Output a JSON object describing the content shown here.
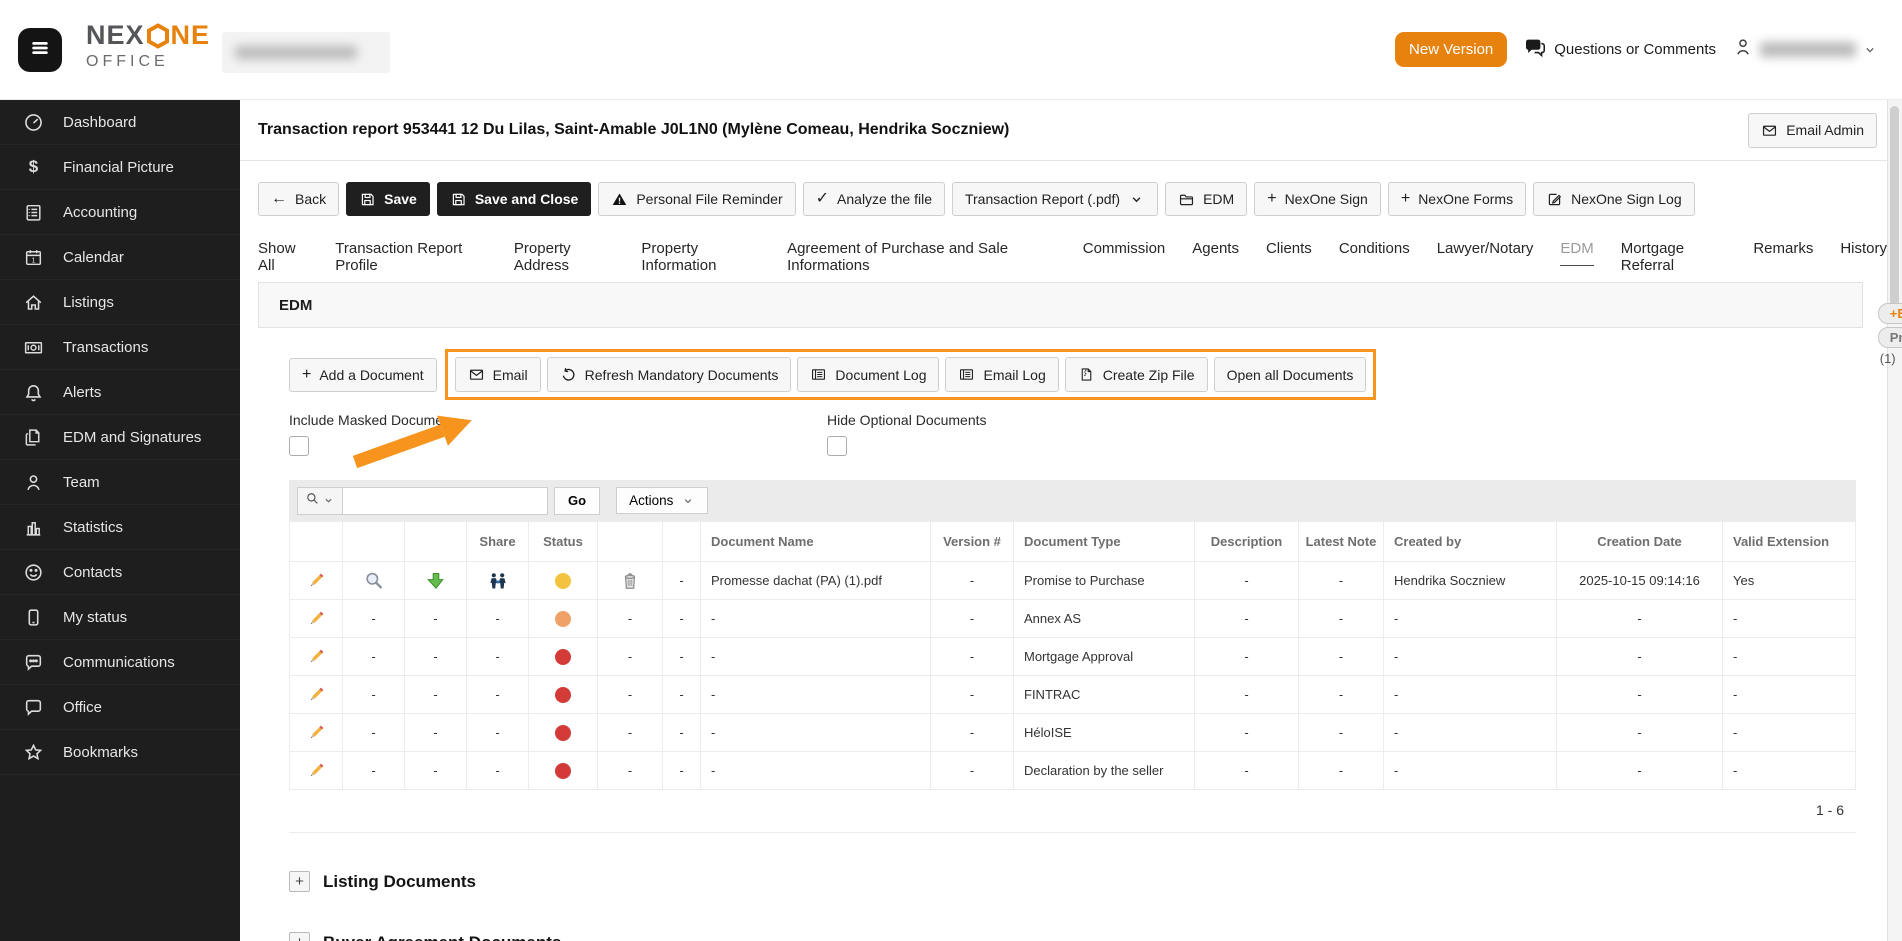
{
  "header": {
    "brand": {
      "name_gray": "NEX",
      "name_orange": "NE",
      "sub": "OFFICE"
    },
    "new_version_label": "New Version",
    "questions_label": "Questions or Comments"
  },
  "sidebar": {
    "items": [
      {
        "label": "Dashboard",
        "icon": "gauge"
      },
      {
        "label": "Financial Picture",
        "icon": "dollar"
      },
      {
        "label": "Accounting",
        "icon": "ledger"
      },
      {
        "label": "Calendar",
        "icon": "calendar"
      },
      {
        "label": "Listings",
        "icon": "home"
      },
      {
        "label": "Transactions",
        "icon": "banknote"
      },
      {
        "label": "Alerts",
        "icon": "bell"
      },
      {
        "label": "EDM and Signatures",
        "icon": "docs"
      },
      {
        "label": "Team",
        "icon": "person"
      },
      {
        "label": "Statistics",
        "icon": "chart"
      },
      {
        "label": "Contacts",
        "icon": "smiley"
      },
      {
        "label": "My status",
        "icon": "phone"
      },
      {
        "label": "Communications",
        "icon": "chat-dots"
      },
      {
        "label": "Office",
        "icon": "chat"
      },
      {
        "label": "Bookmarks",
        "icon": "star"
      }
    ]
  },
  "page": {
    "title": "Transaction report 953441 12 Du Lilas, Saint-Amable J0L1N0 (Mylène Comeau, Hendrika Soczniew)",
    "email_admin_label": "Email Admin"
  },
  "toolbar": {
    "buttons": [
      {
        "label": "Back",
        "icon": "arrow-left",
        "variant": "light"
      },
      {
        "label": "Save",
        "icon": "save",
        "variant": "dark"
      },
      {
        "label": "Save and Close",
        "icon": "save",
        "variant": "dark"
      },
      {
        "label": "Personal File Reminder",
        "icon": "warning",
        "variant": "light"
      },
      {
        "label": "Analyze the file",
        "icon": "check",
        "variant": "light"
      },
      {
        "label": "Transaction Report (.pdf)",
        "icon_right": "chevron-down",
        "variant": "light"
      },
      {
        "label": "EDM",
        "icon": "folder",
        "variant": "light"
      },
      {
        "label": "NexOne Sign",
        "icon": "plus",
        "variant": "light"
      },
      {
        "label": "NexOne Forms",
        "icon": "plus",
        "variant": "light"
      },
      {
        "label": "NexOne Sign Log",
        "icon": "sign-log",
        "variant": "light"
      }
    ]
  },
  "tabs": {
    "active": "EDM",
    "items": [
      "Show All",
      "Transaction Report Profile",
      "Property Address",
      "Property Information",
      "Agreement of Purchase and Sale Informations",
      "Commission",
      "Agents",
      "Clients",
      "Conditions",
      "Lawyer/Notary",
      "EDM",
      "Mortgage Referral",
      "Remarks",
      "History"
    ]
  },
  "edm": {
    "section_title": "EDM",
    "add_document_label": "Add a Document",
    "action_buttons": [
      {
        "label": "Email",
        "icon": "mail"
      },
      {
        "label": "Refresh Mandatory Documents",
        "icon": "refresh"
      },
      {
        "label": "Document Log",
        "icon": "log"
      },
      {
        "label": "Email Log",
        "icon": "log"
      },
      {
        "label": "Create Zip File",
        "icon": "zip"
      },
      {
        "label": "Open all Documents"
      }
    ],
    "include_masked_label": "Include Masked Docume",
    "hide_optional_label": "Hide Optional Documents",
    "search": {
      "go_label": "Go",
      "actions_label": "Actions",
      "value": ""
    },
    "table": {
      "columns": [
        "",
        "",
        "",
        "Share",
        "Status",
        "",
        "",
        "Document Name",
        "Version #",
        "Document Type",
        "Description",
        "Latest Note",
        "Created by",
        "Creation Date",
        "Valid Extension"
      ],
      "status_colors": {
        "amber": "#F3C340",
        "orange": "#F0A168",
        "red": "#D23B38"
      },
      "rows": [
        {
          "edit": true,
          "preview": true,
          "download": true,
          "share": true,
          "status": "amber",
          "trash": true,
          "col8": "-",
          "name": "Promesse dachat (PA) (1).pdf",
          "version": "-",
          "type": "Promise to Purchase",
          "description": "-",
          "note": "-",
          "created_by": "Hendrika Soczniew",
          "date": "2025-10-15 09:14:16",
          "valid": "Yes"
        },
        {
          "edit": true,
          "preview": false,
          "download": false,
          "share": false,
          "status": "orange",
          "trash": false,
          "col8": "-",
          "name": "-",
          "version": "-",
          "type": "Annex AS",
          "description": "-",
          "note": "-",
          "created_by": "-",
          "date": "-",
          "valid": "-"
        },
        {
          "edit": true,
          "preview": false,
          "download": false,
          "share": false,
          "status": "red",
          "trash": false,
          "col8": "-",
          "name": "-",
          "version": "-",
          "type": "Mortgage Approval",
          "description": "-",
          "note": "-",
          "created_by": "-",
          "date": "-",
          "valid": "-"
        },
        {
          "edit": true,
          "preview": false,
          "download": false,
          "share": false,
          "status": "red",
          "trash": false,
          "col8": "-",
          "name": "-",
          "version": "-",
          "type": "FINTRAC",
          "description": "-",
          "note": "-",
          "created_by": "-",
          "date": "-",
          "valid": "-"
        },
        {
          "edit": true,
          "preview": false,
          "download": false,
          "share": false,
          "status": "red",
          "trash": false,
          "col8": "-",
          "name": "-",
          "version": "-",
          "type": "HéloISE",
          "description": "-",
          "note": "-",
          "created_by": "-",
          "date": "-",
          "valid": "-"
        },
        {
          "edit": true,
          "preview": false,
          "download": false,
          "share": false,
          "status": "red",
          "trash": false,
          "col8": "-",
          "name": "-",
          "version": "-",
          "type": "Declaration by the seller",
          "description": "-",
          "note": "-",
          "created_by": "-",
          "date": "-",
          "valid": "-"
        }
      ]
    },
    "pagination": "1 - 6",
    "sections": [
      "Listing Documents",
      "Buyer Agreement Documents"
    ]
  },
  "floating_pills": [
    "+E",
    "Pr",
    "(1)"
  ]
}
